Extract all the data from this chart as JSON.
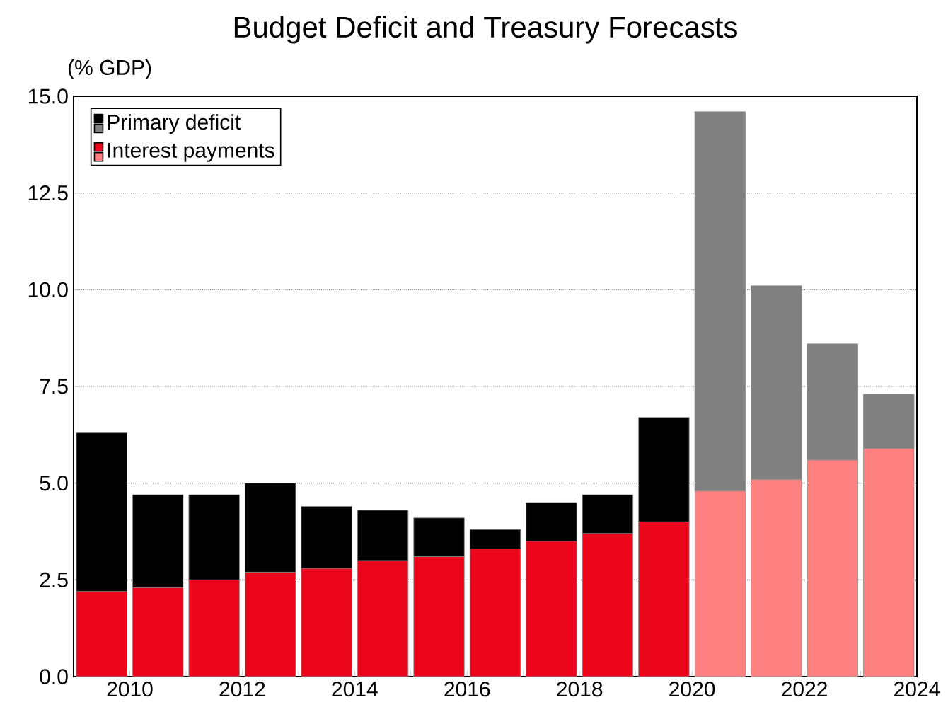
{
  "chart_data": {
    "type": "bar",
    "title": "Budget Deficit and Treasury Forecasts",
    "ylabel": "(% GDP)",
    "stacked": true,
    "x": [
      2009.5,
      2010.5,
      2011.5,
      2012.5,
      2013.5,
      2014.5,
      2015.5,
      2016.5,
      2017.5,
      2018.5,
      2019.5,
      2020.5,
      2021.5,
      2022.5,
      2023.5
    ],
    "series": [
      {
        "name": "Interest payments",
        "values": [
          2.2,
          2.3,
          2.5,
          2.7,
          2.8,
          3.0,
          3.1,
          3.3,
          3.5,
          3.7,
          4.0,
          4.8,
          5.1,
          5.6,
          5.9
        ],
        "colors": [
          "#ec061c",
          "#ec061c",
          "#ec061c",
          "#ec061c",
          "#ec061c",
          "#ec061c",
          "#ec061c",
          "#ec061c",
          "#ec061c",
          "#ec061c",
          "#ec061c",
          "#ff8080",
          "#ff8080",
          "#ff8080",
          "#ff8080"
        ]
      },
      {
        "name": "Primary deficit",
        "values": [
          4.1,
          2.4,
          2.2,
          2.3,
          1.6,
          1.3,
          1.0,
          0.5,
          1.0,
          1.0,
          2.7,
          9.8,
          5.0,
          3.0,
          1.4
        ],
        "colors": [
          "#000000",
          "#000000",
          "#000000",
          "#000000",
          "#000000",
          "#000000",
          "#000000",
          "#000000",
          "#000000",
          "#000000",
          "#000000",
          "#808080",
          "#808080",
          "#808080",
          "#808080"
        ]
      }
    ],
    "xlim": [
      2009,
      2024
    ],
    "xticks": [
      {
        "value": 2009,
        "label": null
      },
      2010,
      {
        "value": 2011,
        "label": null
      },
      2012,
      {
        "value": 2013,
        "label": null
      },
      2014,
      {
        "value": 2015,
        "label": null
      },
      2016,
      {
        "value": 2017,
        "label": null
      },
      2018,
      {
        "value": 2019,
        "label": null
      },
      2020,
      {
        "value": 2021,
        "label": null
      },
      2022,
      {
        "value": 2023,
        "label": null
      },
      2024
    ],
    "ylim": [
      0,
      15
    ],
    "yticks": [
      {
        "value": 0,
        "label": "0.0"
      },
      {
        "value": 2.5,
        "label": "2.5"
      },
      {
        "value": 5,
        "label": "5.0"
      },
      {
        "value": 7.5,
        "label": "7.5"
      },
      {
        "value": 10,
        "label": "10.0"
      },
      {
        "value": 12.5,
        "label": "12.5"
      },
      {
        "value": 15,
        "label": "15.0"
      }
    ],
    "grid": "y",
    "legend": "top left"
  }
}
